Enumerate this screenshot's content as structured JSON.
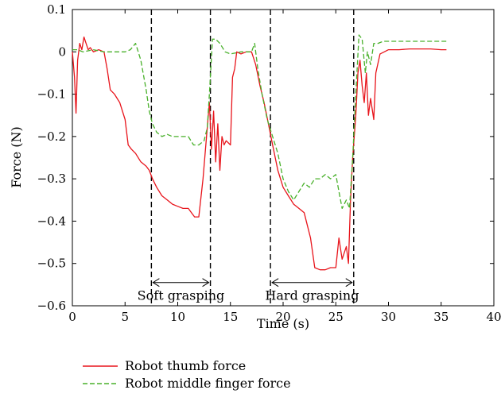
{
  "chart_data": {
    "type": "line",
    "xlabel": "Time (s)",
    "ylabel": "Force (N)",
    "xlim": [
      0,
      40
    ],
    "ylim": [
      -0.6,
      0.1
    ],
    "xticks": [
      "0",
      "5",
      "10",
      "15",
      "20",
      "25",
      "30",
      "35",
      "40"
    ],
    "yticks": [
      "0.1",
      "0",
      "−0.1",
      "−0.2",
      "−0.3",
      "−0.4",
      "−0.5",
      "−0.6"
    ],
    "grid": false,
    "legend_position": "bottom",
    "series": [
      {
        "name": "Robot thumb force",
        "color": "#e8141b",
        "style": "solid",
        "x": [
          0,
          0.2,
          0.35,
          0.5,
          0.7,
          0.9,
          1.1,
          1.3,
          1.5,
          1.7,
          2.0,
          2.5,
          3.0,
          3.3,
          3.6,
          4.0,
          4.5,
          5.0,
          5.3,
          5.6,
          6.0,
          6.5,
          7.0,
          7.3,
          7.6,
          8.0,
          8.5,
          9.0,
          9.5,
          10.0,
          10.5,
          11.0,
          11.3,
          11.6,
          12.0,
          12.4,
          12.8,
          13.0,
          13.2,
          13.4,
          13.6,
          13.8,
          14.0,
          14.2,
          14.4,
          14.6,
          15.0,
          15.2,
          15.4,
          15.6,
          16.0,
          16.5,
          17.0,
          17.4,
          17.8,
          18.2,
          18.6,
          19.0,
          19.5,
          20.0,
          20.5,
          21.0,
          21.5,
          22.0,
          22.3,
          22.6,
          23.0,
          23.5,
          24.0,
          24.5,
          25.0,
          25.3,
          25.6,
          26.0,
          26.2,
          26.4,
          26.6,
          26.9,
          27.1,
          27.3,
          27.5,
          27.7,
          27.9,
          28.1,
          28.3,
          28.6,
          28.8,
          29.2,
          29.6,
          30.0,
          31.0,
          32.0,
          33.0,
          34.0,
          35.0,
          35.5
        ],
        "y": [
          0,
          -0.06,
          -0.145,
          -0.02,
          0.02,
          0.005,
          0.035,
          0.02,
          0.005,
          0.01,
          0.0,
          0.005,
          0.0,
          -0.04,
          -0.09,
          -0.1,
          -0.12,
          -0.16,
          -0.22,
          -0.23,
          -0.24,
          -0.26,
          -0.27,
          -0.28,
          -0.3,
          -0.32,
          -0.34,
          -0.35,
          -0.36,
          -0.365,
          -0.37,
          -0.37,
          -0.38,
          -0.39,
          -0.39,
          -0.3,
          -0.18,
          -0.12,
          -0.23,
          -0.14,
          -0.26,
          -0.17,
          -0.28,
          -0.2,
          -0.22,
          -0.21,
          -0.22,
          -0.06,
          -0.04,
          0.0,
          -0.005,
          0.0,
          0.0,
          -0.03,
          -0.08,
          -0.12,
          -0.17,
          -0.22,
          -0.28,
          -0.32,
          -0.34,
          -0.36,
          -0.37,
          -0.38,
          -0.41,
          -0.44,
          -0.51,
          -0.515,
          -0.515,
          -0.51,
          -0.51,
          -0.44,
          -0.49,
          -0.46,
          -0.5,
          -0.35,
          -0.25,
          -0.15,
          -0.05,
          -0.02,
          -0.08,
          -0.12,
          -0.05,
          -0.15,
          -0.11,
          -0.16,
          -0.05,
          -0.005,
          0.0,
          0.005,
          0.005,
          0.007,
          0.007,
          0.007,
          0.005,
          0.005
        ]
      },
      {
        "name": "Robot middle finger force",
        "color": "#48b02a",
        "style": "dashed",
        "x": [
          0,
          0.5,
          1.0,
          2.0,
          3.0,
          4.0,
          5.0,
          5.5,
          6.0,
          6.5,
          7.0,
          7.3,
          7.6,
          8.0,
          8.5,
          9.0,
          9.5,
          10.0,
          10.5,
          11.0,
          11.5,
          12.0,
          12.5,
          12.8,
          13.0,
          13.3,
          13.6,
          14.0,
          14.5,
          15.0,
          16.0,
          17.0,
          17.3,
          17.6,
          18.0,
          18.5,
          19.0,
          19.5,
          20.0,
          20.5,
          21.0,
          21.5,
          22.0,
          22.5,
          23.0,
          23.5,
          24.0,
          24.5,
          25.0,
          25.3,
          25.6,
          26.0,
          26.3,
          26.6,
          26.9,
          27.2,
          27.5,
          27.8,
          28.0,
          28.3,
          28.6,
          29.0,
          29.5,
          30.0,
          31.0,
          32.0,
          33.0,
          34.0,
          35.0,
          35.5
        ],
        "y": [
          0.005,
          0.005,
          0.0,
          0.005,
          0.0,
          0.0,
          0.0,
          0.005,
          0.02,
          -0.02,
          -0.09,
          -0.14,
          -0.17,
          -0.19,
          -0.2,
          -0.195,
          -0.2,
          -0.2,
          -0.2,
          -0.2,
          -0.22,
          -0.22,
          -0.21,
          -0.18,
          -0.1,
          0.03,
          0.03,
          0.02,
          0.0,
          -0.005,
          0.0,
          0.0,
          0.02,
          -0.04,
          -0.1,
          -0.16,
          -0.2,
          -0.24,
          -0.3,
          -0.33,
          -0.35,
          -0.33,
          -0.31,
          -0.32,
          -0.3,
          -0.3,
          -0.29,
          -0.3,
          -0.29,
          -0.33,
          -0.37,
          -0.35,
          -0.37,
          -0.25,
          -0.1,
          0.04,
          0.03,
          -0.05,
          0.0,
          -0.03,
          0.02,
          0.02,
          0.025,
          0.025,
          0.025,
          0.025,
          0.025,
          0.025,
          0.025,
          0.025
        ]
      }
    ],
    "vlines": [
      7.5,
      13.1,
      18.8,
      26.7
    ],
    "annotations": [
      {
        "text": "Soft grasping",
        "x_from": 7.5,
        "x_to": 13.1,
        "y": -0.545
      },
      {
        "text": "Hard grasping",
        "x_from": 18.8,
        "x_to": 26.7,
        "y": -0.545
      }
    ]
  }
}
